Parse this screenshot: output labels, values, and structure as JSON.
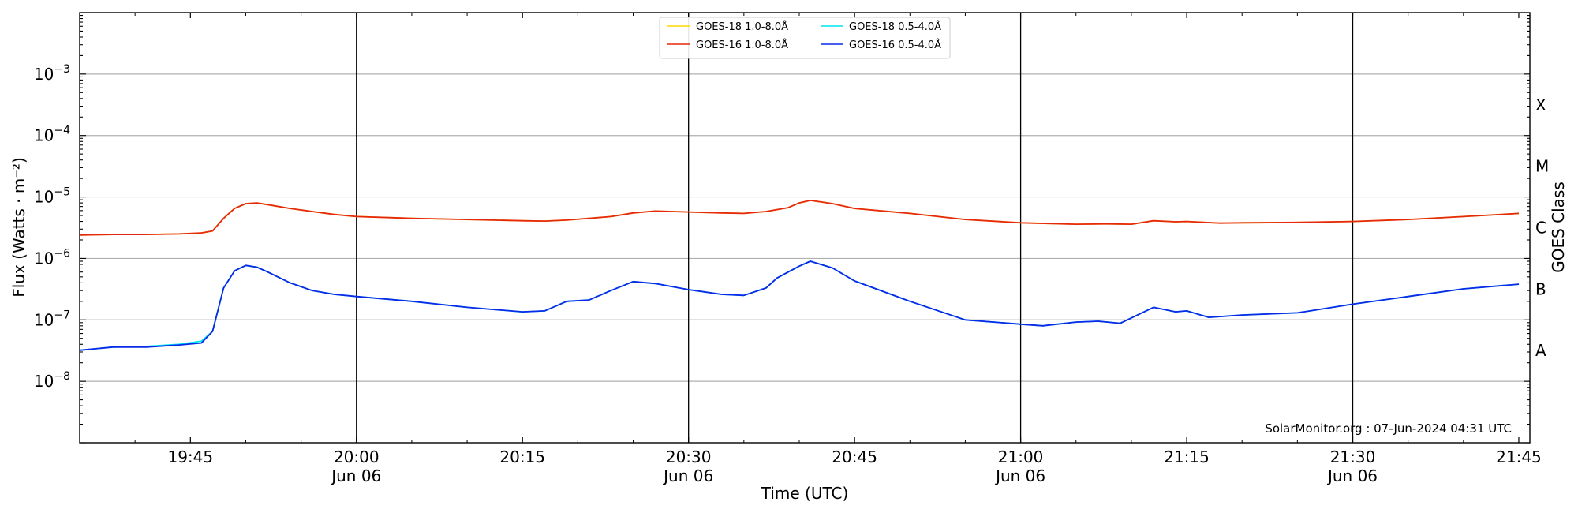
{
  "chart_data": {
    "type": "line",
    "xlabel": "Time (UTC)",
    "ylabel": "Flux (Watts · m⁻²)",
    "y2label": "GOES Class",
    "yscale": "log",
    "ylim": [
      1e-09,
      0.01
    ],
    "xlim": [
      "2024-06-06T19:35",
      "2024-06-06T21:46"
    ],
    "grid": "horizontal at decades",
    "legend_position": "top-center",
    "watermark": "SolarMonitor.org : 07-Jun-2024 04:31 UTC",
    "x_ticks": [
      {
        "time": "19:45",
        "line1": "19:45",
        "line2": ""
      },
      {
        "time": "20:00",
        "line1": "20:00",
        "line2": "Jun 06"
      },
      {
        "time": "20:15",
        "line1": "20:15",
        "line2": ""
      },
      {
        "time": "20:30",
        "line1": "20:30",
        "line2": "Jun 06"
      },
      {
        "time": "20:45",
        "line1": "20:45",
        "line2": ""
      },
      {
        "time": "21:00",
        "line1": "21:00",
        "line2": "Jun 06"
      },
      {
        "time": "21:15",
        "line1": "21:15",
        "line2": ""
      },
      {
        "time": "21:30",
        "line1": "21:30",
        "line2": "Jun 06"
      },
      {
        "time": "21:45",
        "line1": "21:45",
        "line2": ""
      }
    ],
    "vlines": [
      "20:00",
      "20:30",
      "21:00",
      "21:30"
    ],
    "y_ticks": [
      {
        "value": 1e-08,
        "base": "10",
        "exp": "−8"
      },
      {
        "value": 1e-07,
        "base": "10",
        "exp": "−7"
      },
      {
        "value": 1e-06,
        "base": "10",
        "exp": "−6"
      },
      {
        "value": 1e-05,
        "base": "10",
        "exp": "−5"
      },
      {
        "value": 0.0001,
        "base": "10",
        "exp": "−4"
      },
      {
        "value": 0.001,
        "base": "10",
        "exp": "−3"
      }
    ],
    "goes_classes": [
      {
        "label": "A",
        "value": 3.16e-08
      },
      {
        "label": "B",
        "value": 3.16e-07
      },
      {
        "label": "C",
        "value": 3.16e-06
      },
      {
        "label": "M",
        "value": 3.16e-05
      },
      {
        "label": "X",
        "value": 0.000316
      }
    ],
    "series": [
      {
        "name": "GOES-18 1.0-8.0Å",
        "color": "#ffd700",
        "x": [
          "19:35",
          "19:38",
          "19:41",
          "19:44",
          "19:46",
          "19:47",
          "19:48",
          "19:49",
          "19:50",
          "19:51",
          "19:52",
          "19:54",
          "19:56",
          "19:58",
          "20:00",
          "20:05",
          "20:10",
          "20:15",
          "20:17",
          "20:19",
          "20:21",
          "20:23",
          "20:25",
          "20:27",
          "20:30",
          "20:33",
          "20:35",
          "20:37",
          "20:39",
          "20:40",
          "20:41",
          "20:43",
          "20:45",
          "20:50",
          "20:55",
          "21:00",
          "21:05",
          "21:08",
          "21:10",
          "21:12",
          "21:14",
          "21:15",
          "21:18",
          "21:20",
          "21:25",
          "21:30",
          "21:35",
          "21:40",
          "21:45"
        ],
        "y": [
          2.4e-06,
          2.45e-06,
          2.45e-06,
          2.5e-06,
          2.6e-06,
          2.8e-06,
          4.5e-06,
          6.5e-06,
          7.8e-06,
          8e-06,
          7.5e-06,
          6.5e-06,
          5.8e-06,
          5.2e-06,
          4.8e-06,
          4.5e-06,
          4.3e-06,
          4.1e-06,
          4.05e-06,
          4.2e-06,
          4.5e-06,
          4.8e-06,
          5.5e-06,
          5.9e-06,
          5.7e-06,
          5.5e-06,
          5.4e-06,
          5.8e-06,
          6.7e-06,
          8e-06,
          8.8e-06,
          7.8e-06,
          6.5e-06,
          5.4e-06,
          4.3e-06,
          3.8e-06,
          3.6e-06,
          3.65e-06,
          3.6e-06,
          4.1e-06,
          3.95e-06,
          4e-06,
          3.75e-06,
          3.8e-06,
          3.85e-06,
          4e-06,
          4.3e-06,
          4.8e-06,
          5.4e-06
        ]
      },
      {
        "name": "GOES-16 1.0-8.0Å",
        "color": "#e5290f",
        "x": [
          "19:35",
          "19:38",
          "19:41",
          "19:44",
          "19:46",
          "19:47",
          "19:48",
          "19:49",
          "19:50",
          "19:51",
          "19:52",
          "19:54",
          "19:56",
          "19:58",
          "20:00",
          "20:05",
          "20:10",
          "20:15",
          "20:17",
          "20:19",
          "20:21",
          "20:23",
          "20:25",
          "20:27",
          "20:30",
          "20:33",
          "20:35",
          "20:37",
          "20:39",
          "20:40",
          "20:41",
          "20:43",
          "20:45",
          "20:50",
          "20:55",
          "21:00",
          "21:05",
          "21:08",
          "21:10",
          "21:12",
          "21:14",
          "21:15",
          "21:18",
          "21:20",
          "21:25",
          "21:30",
          "21:35",
          "21:40",
          "21:45"
        ],
        "y": [
          2.4e-06,
          2.45e-06,
          2.45e-06,
          2.5e-06,
          2.6e-06,
          2.8e-06,
          4.5e-06,
          6.5e-06,
          7.8e-06,
          8e-06,
          7.5e-06,
          6.5e-06,
          5.8e-06,
          5.2e-06,
          4.8e-06,
          4.5e-06,
          4.3e-06,
          4.1e-06,
          4.05e-06,
          4.2e-06,
          4.5e-06,
          4.8e-06,
          5.5e-06,
          5.9e-06,
          5.7e-06,
          5.5e-06,
          5.4e-06,
          5.8e-06,
          6.7e-06,
          8e-06,
          8.8e-06,
          7.8e-06,
          6.5e-06,
          5.4e-06,
          4.3e-06,
          3.8e-06,
          3.6e-06,
          3.65e-06,
          3.6e-06,
          4.1e-06,
          3.95e-06,
          4e-06,
          3.75e-06,
          3.8e-06,
          3.85e-06,
          4e-06,
          4.3e-06,
          4.8e-06,
          5.4e-06
        ]
      },
      {
        "name": "GOES-18 0.5-4.0Å",
        "color": "#00e5ee",
        "x": [
          "19:35",
          "19:38",
          "19:41",
          "19:44",
          "19:46",
          "19:47",
          "19:48",
          "19:49",
          "19:50",
          "19:51",
          "19:52",
          "19:54",
          "19:56",
          "19:58",
          "20:00",
          "20:05",
          "20:10",
          "20:15",
          "20:17",
          "20:19",
          "20:21",
          "20:23",
          "20:25",
          "20:27",
          "20:30",
          "20:33",
          "20:35",
          "20:37",
          "20:38",
          "20:40",
          "20:41",
          "20:43",
          "20:45",
          "20:50",
          "20:55",
          "21:00",
          "21:02",
          "21:05",
          "21:07",
          "21:09",
          "21:12",
          "21:14",
          "21:15",
          "21:17",
          "21:20",
          "21:25",
          "21:30",
          "21:35",
          "21:40",
          "21:45"
        ],
        "y": [
          3.2e-08,
          3.6e-08,
          3.7e-08,
          4e-08,
          4.5e-08,
          6.5e-08,
          3.3e-07,
          6.3e-07,
          7.7e-07,
          7.2e-07,
          6e-07,
          4e-07,
          3e-07,
          2.6e-07,
          2.4e-07,
          2e-07,
          1.6e-07,
          1.35e-07,
          1.4e-07,
          2e-07,
          2.1e-07,
          3e-07,
          4.2e-07,
          3.9e-07,
          3.1e-07,
          2.6e-07,
          2.5e-07,
          3.3e-07,
          4.8e-07,
          7.5e-07,
          9e-07,
          7e-07,
          4.3e-07,
          2e-07,
          1e-07,
          8.5e-08,
          8e-08,
          9.2e-08,
          9.5e-08,
          8.8e-08,
          1.6e-07,
          1.35e-07,
          1.4e-07,
          1.1e-07,
          1.2e-07,
          1.3e-07,
          1.8e-07,
          2.4e-07,
          3.2e-07,
          3.8e-07
        ]
      },
      {
        "name": "GOES-16 0.5-4.0Å",
        "color": "#0a2ae8",
        "x": [
          "19:35",
          "19:38",
          "19:41",
          "19:44",
          "19:46",
          "19:47",
          "19:48",
          "19:49",
          "19:50",
          "19:51",
          "19:52",
          "19:54",
          "19:56",
          "19:58",
          "20:00",
          "20:05",
          "20:10",
          "20:15",
          "20:17",
          "20:19",
          "20:21",
          "20:23",
          "20:25",
          "20:27",
          "20:30",
          "20:33",
          "20:35",
          "20:37",
          "20:38",
          "20:40",
          "20:41",
          "20:43",
          "20:45",
          "20:50",
          "20:55",
          "21:00",
          "21:02",
          "21:05",
          "21:07",
          "21:09",
          "21:12",
          "21:14",
          "21:15",
          "21:17",
          "21:20",
          "21:25",
          "21:30",
          "21:35",
          "21:40",
          "21:45"
        ],
        "y": [
          3.2e-08,
          3.6e-08,
          3.6e-08,
          3.9e-08,
          4.2e-08,
          6.5e-08,
          3.3e-07,
          6.3e-07,
          7.7e-07,
          7.2e-07,
          6e-07,
          4e-07,
          3e-07,
          2.6e-07,
          2.4e-07,
          2e-07,
          1.6e-07,
          1.35e-07,
          1.4e-07,
          2e-07,
          2.1e-07,
          3e-07,
          4.2e-07,
          3.9e-07,
          3.1e-07,
          2.6e-07,
          2.5e-07,
          3.3e-07,
          4.8e-07,
          7.5e-07,
          9e-07,
          7e-07,
          4.3e-07,
          2e-07,
          1e-07,
          8.5e-08,
          8e-08,
          9.2e-08,
          9.5e-08,
          8.8e-08,
          1.6e-07,
          1.35e-07,
          1.4e-07,
          1.1e-07,
          1.2e-07,
          1.3e-07,
          1.8e-07,
          2.4e-07,
          3.2e-07,
          3.8e-07
        ]
      }
    ]
  }
}
